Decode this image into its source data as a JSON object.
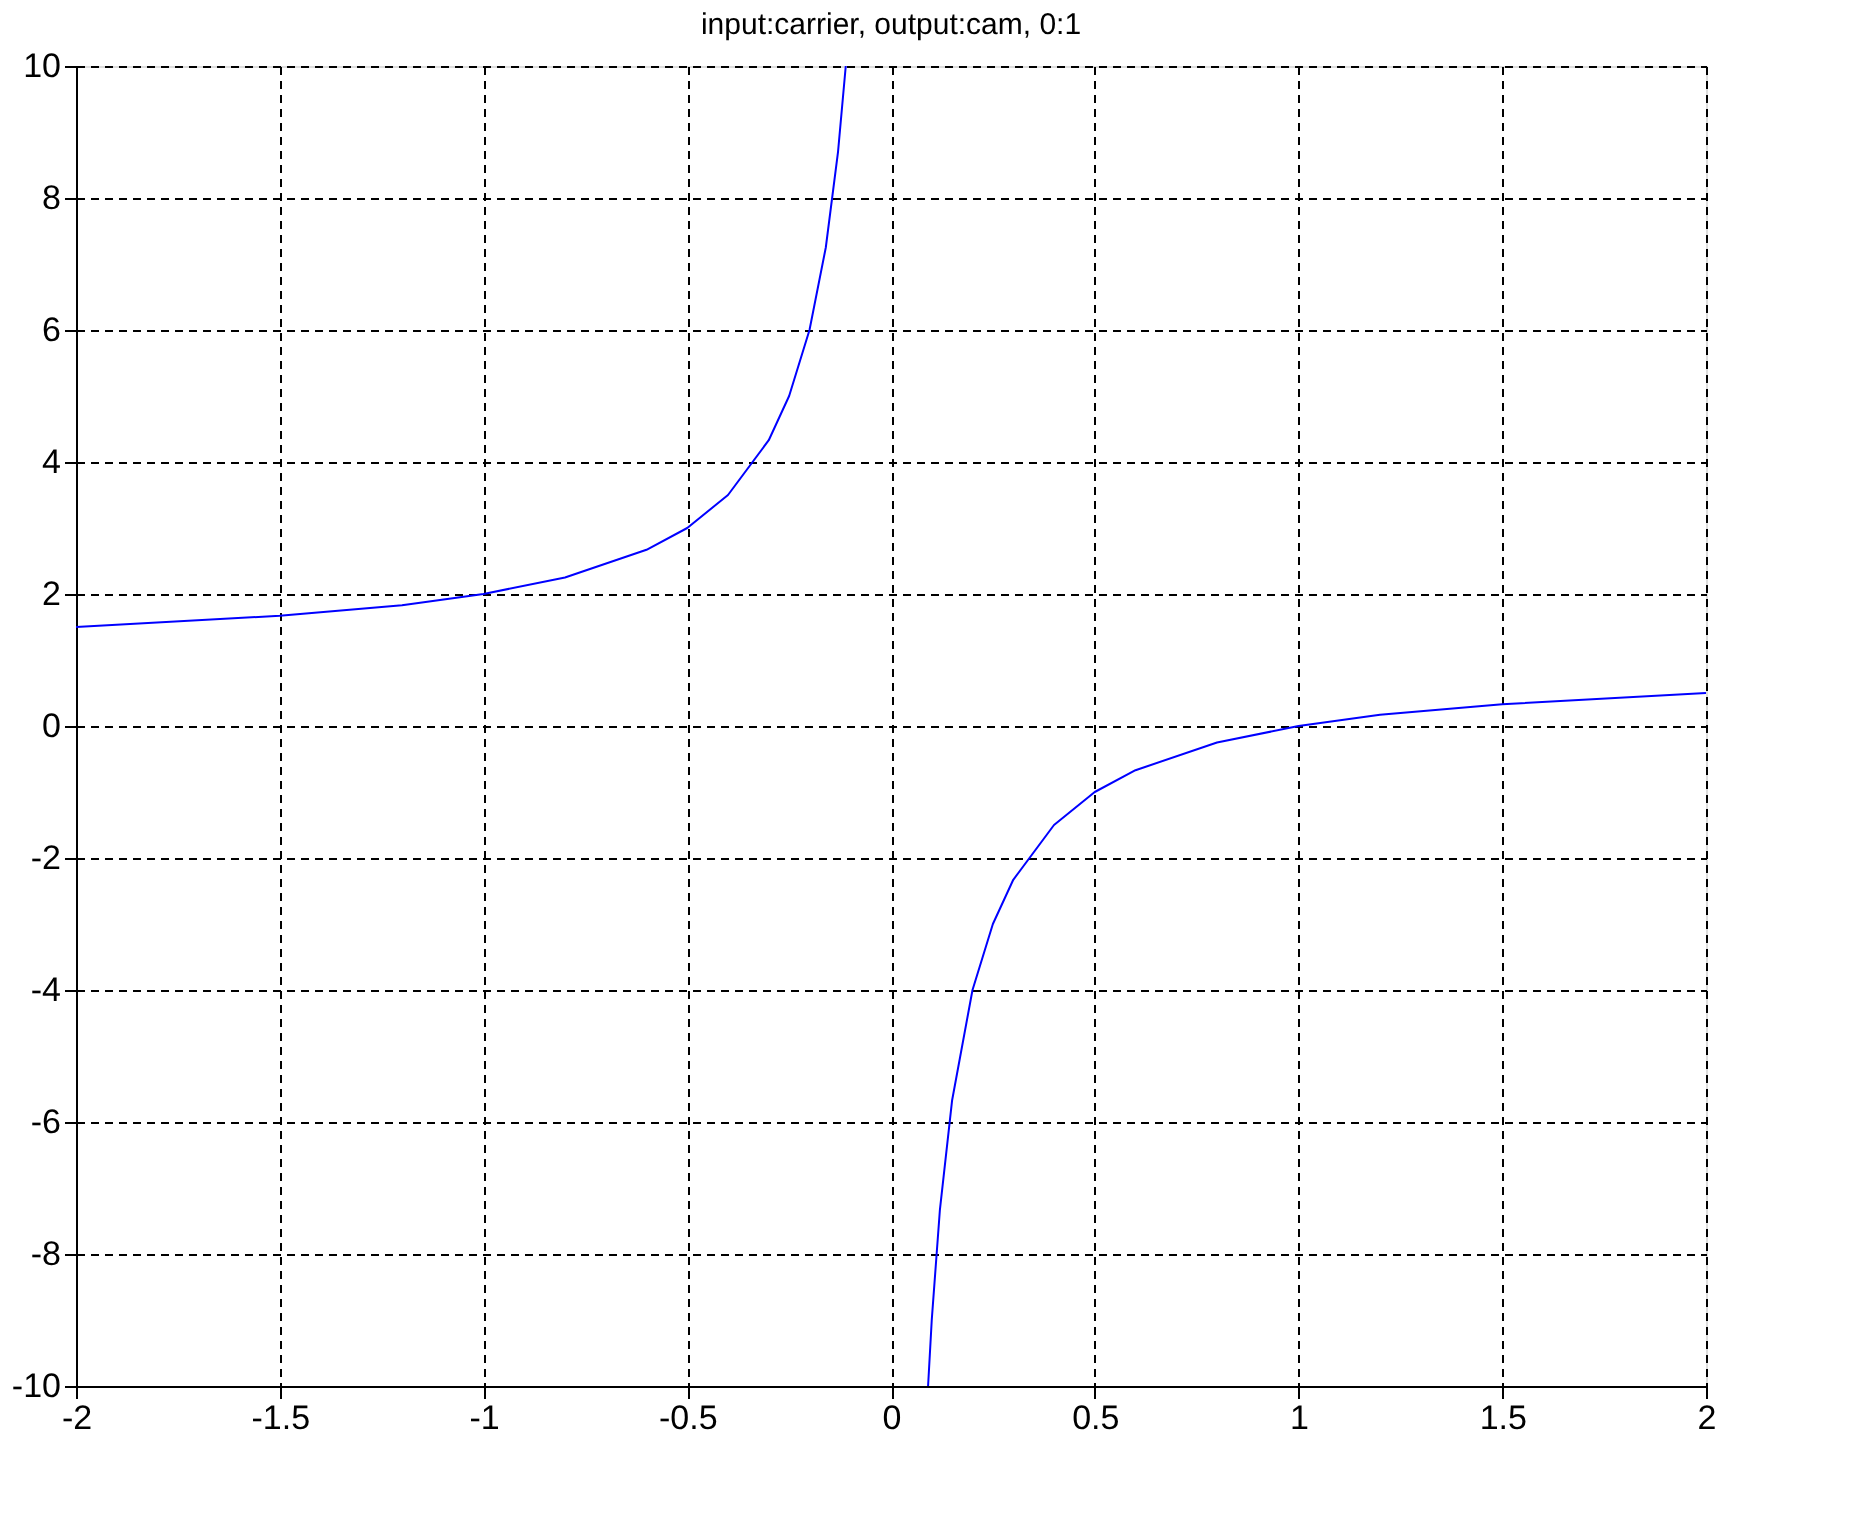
{
  "chart_data": {
    "type": "line",
    "title": "input:carrier, output:cam, 0:1",
    "series": [
      {
        "color": "#0000ff",
        "x": [
          -2,
          -1.5,
          -1.2,
          -1,
          -0.8,
          -0.6,
          -0.5,
          -0.4,
          -0.3,
          -0.25,
          -0.2,
          -0.16,
          -0.13,
          -0.111
        ],
        "values": [
          1.5,
          1.67,
          1.83,
          2,
          2.25,
          2.67,
          3,
          3.5,
          4.33,
          5,
          6,
          7.25,
          8.7,
          10
        ]
      },
      {
        "color": "#0000ff",
        "x": [
          0.091,
          0.1,
          0.12,
          0.15,
          0.2,
          0.25,
          0.3,
          0.4,
          0.5,
          0.6,
          0.8,
          1,
          1.2,
          1.5,
          2
        ],
        "values": [
          -10,
          -9,
          -7.33,
          -5.67,
          -4,
          -3,
          -2.33,
          -1.5,
          -1,
          -0.67,
          -0.25,
          0,
          0.17,
          0.33,
          0.5
        ]
      }
    ],
    "xlim": [
      -2,
      2
    ],
    "xticks": [
      -2,
      -1.5,
      -1,
      -0.5,
      0,
      0.5,
      1,
      1.5,
      2
    ],
    "ylim": [
      -10,
      10
    ],
    "yticks": [
      -10,
      -8,
      -6,
      -4,
      -2,
      0,
      2,
      4,
      6,
      8,
      10
    ],
    "grid": true,
    "legend": false,
    "marker": "none",
    "line_style": "solid"
  }
}
